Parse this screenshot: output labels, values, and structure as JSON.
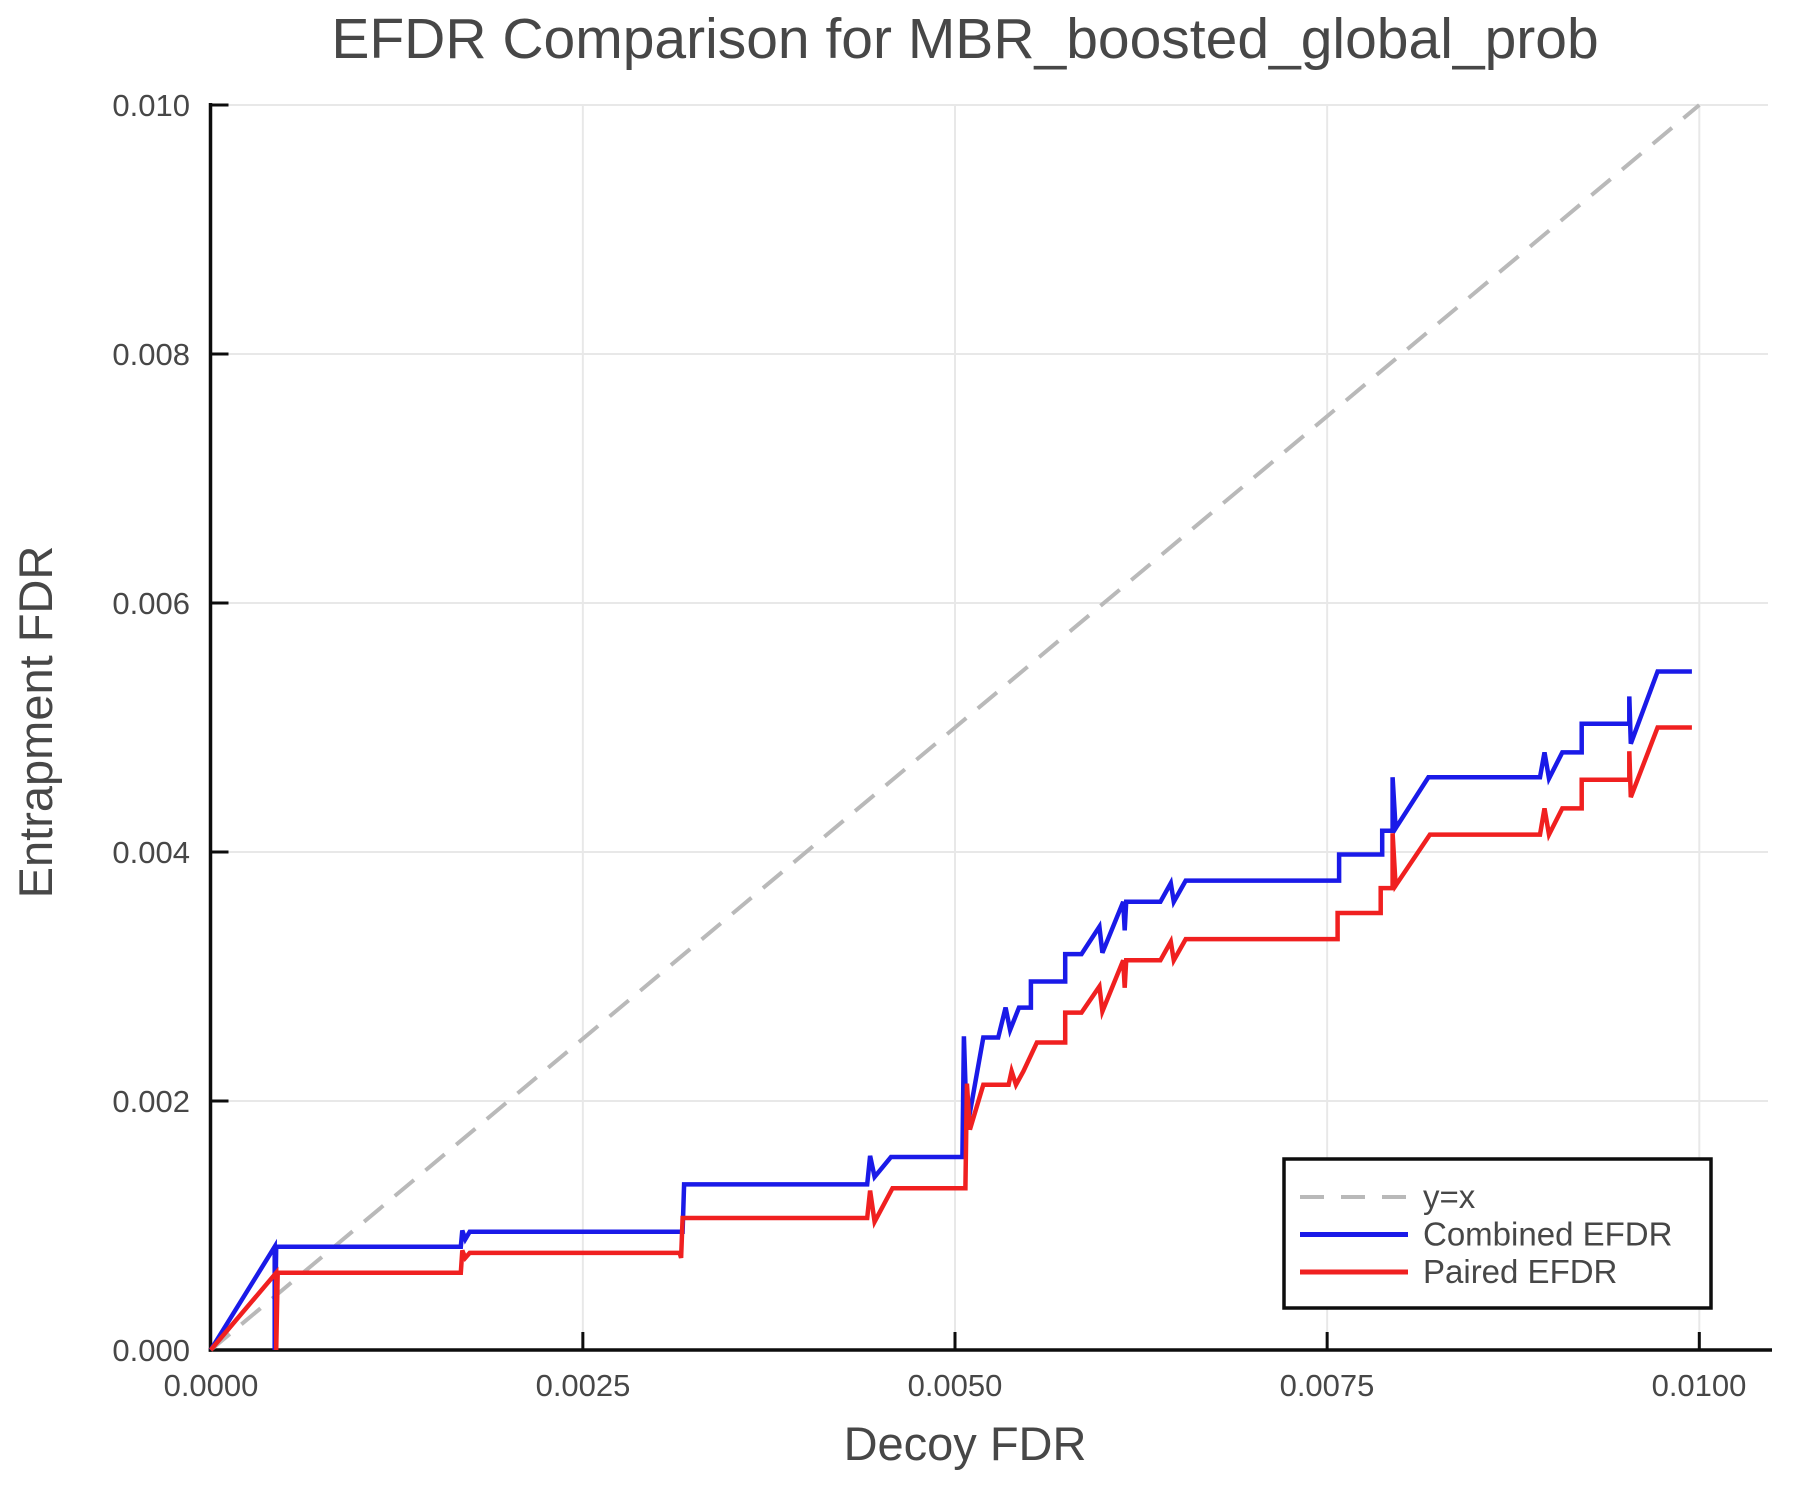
{
  "chart_data": {
    "type": "line",
    "title": "EFDR Comparison for MBR_boosted_global_prob",
    "xlabel": "Decoy FDR",
    "ylabel": "Entrapment FDR",
    "xlim": [
      0,
      0.0105
    ],
    "ylim": [
      0,
      0.0101
    ],
    "grid": true,
    "legend_position": "lower-right",
    "x_ticks": [
      0,
      0.0025,
      0.005,
      0.0075,
      0.01
    ],
    "x_tick_labels": [
      "0.0000",
      "0.0025",
      "0.0050",
      "0.0075",
      "0.0100"
    ],
    "y_ticks": [
      0,
      0.002,
      0.004,
      0.006,
      0.008,
      0.01
    ],
    "y_tick_labels": [
      "0.000",
      "0.002",
      "0.004",
      "0.006",
      "0.008",
      "0.010"
    ],
    "series": [
      {
        "name": "y=x",
        "color": "#b9b9b9",
        "style": "dashed",
        "points": [
          [
            0,
            0
          ],
          [
            0.01,
            0.01
          ]
        ]
      },
      {
        "name": "Combined EFDR",
        "color": "#1a1ae8",
        "style": "solid",
        "points": [
          [
            0,
            0
          ],
          [
            0.00043,
            0.00083
          ],
          [
            0.00043,
            0
          ],
          [
            0.00044,
            0.00083
          ],
          [
            0.00168,
            0.00083
          ],
          [
            0.00169,
            0.00096
          ],
          [
            0.00171,
            0.00089
          ],
          [
            0.00174,
            0.00095
          ],
          [
            0.00317,
            0.00095
          ],
          [
            0.00318,
            0.00133
          ],
          [
            0.00441,
            0.00133
          ],
          [
            0.00443,
            0.00156
          ],
          [
            0.00446,
            0.00139
          ],
          [
            0.00457,
            0.00155
          ],
          [
            0.00505,
            0.00155
          ],
          [
            0.00506,
            0.00252
          ],
          [
            0.00508,
            0.00177
          ],
          [
            0.00519,
            0.00251
          ],
          [
            0.00529,
            0.00251
          ],
          [
            0.00534,
            0.00275
          ],
          [
            0.00537,
            0.00257
          ],
          [
            0.00543,
            0.00275
          ],
          [
            0.00551,
            0.00275
          ],
          [
            0.00551,
            0.00296
          ],
          [
            0.00574,
            0.00296
          ],
          [
            0.00574,
            0.00318
          ],
          [
            0.00585,
            0.00318
          ],
          [
            0.00597,
            0.0034
          ],
          [
            0.00599,
            0.00319
          ],
          [
            0.00613,
            0.0036
          ],
          [
            0.00614,
            0.00337
          ],
          [
            0.00615,
            0.0036
          ],
          [
            0.00638,
            0.0036
          ],
          [
            0.00645,
            0.00375
          ],
          [
            0.00647,
            0.0036
          ],
          [
            0.00655,
            0.00377
          ],
          [
            0.00758,
            0.00377
          ],
          [
            0.00758,
            0.00398
          ],
          [
            0.00787,
            0.00398
          ],
          [
            0.00787,
            0.00417
          ],
          [
            0.00794,
            0.00417
          ],
          [
            0.00794,
            0.0046
          ],
          [
            0.00796,
            0.00419
          ],
          [
            0.00818,
            0.0046
          ],
          [
            0.00893,
            0.0046
          ],
          [
            0.00896,
            0.0048
          ],
          [
            0.00899,
            0.00459
          ],
          [
            0.00908,
            0.0048
          ],
          [
            0.00921,
            0.0048
          ],
          [
            0.00921,
            0.00503
          ],
          [
            0.00953,
            0.00503
          ],
          [
            0.00953,
            0.00525
          ],
          [
            0.00954,
            0.00487
          ],
          [
            0.00972,
            0.00545
          ],
          [
            0.00995,
            0.00545
          ]
        ]
      },
      {
        "name": "Paired EFDR",
        "color": "#f02020",
        "style": "solid",
        "points": [
          [
            0,
            0
          ],
          [
            0.00044,
            0.00062
          ],
          [
            0.00044,
            0
          ],
          [
            0.00045,
            0.00062
          ],
          [
            0.00168,
            0.00062
          ],
          [
            0.00169,
            0.0008
          ],
          [
            0.00171,
            0.00074
          ],
          [
            0.00174,
            0.00078
          ],
          [
            0.00315,
            0.00078
          ],
          [
            0.00316,
            0.00074
          ],
          [
            0.00317,
            0.00106
          ],
          [
            0.00441,
            0.00106
          ],
          [
            0.00443,
            0.00128
          ],
          [
            0.00446,
            0.00103
          ],
          [
            0.00458,
            0.0013
          ],
          [
            0.00507,
            0.0013
          ],
          [
            0.00508,
            0.00214
          ],
          [
            0.0051,
            0.00177
          ],
          [
            0.00519,
            0.00213
          ],
          [
            0.00536,
            0.00213
          ],
          [
            0.00538,
            0.00224
          ],
          [
            0.00541,
            0.00213
          ],
          [
            0.00546,
            0.00224
          ],
          [
            0.00555,
            0.00247
          ],
          [
            0.00574,
            0.00247
          ],
          [
            0.00574,
            0.00271
          ],
          [
            0.00585,
            0.00271
          ],
          [
            0.00597,
            0.00292
          ],
          [
            0.00599,
            0.00272
          ],
          [
            0.00613,
            0.00313
          ],
          [
            0.00614,
            0.00291
          ],
          [
            0.00615,
            0.00313
          ],
          [
            0.00638,
            0.00313
          ],
          [
            0.00645,
            0.00328
          ],
          [
            0.00647,
            0.00313
          ],
          [
            0.00655,
            0.0033
          ],
          [
            0.00757,
            0.0033
          ],
          [
            0.00757,
            0.00351
          ],
          [
            0.00786,
            0.00351
          ],
          [
            0.00786,
            0.00371
          ],
          [
            0.00794,
            0.00371
          ],
          [
            0.00794,
            0.00415
          ],
          [
            0.00796,
            0.00373
          ],
          [
            0.00819,
            0.00414
          ],
          [
            0.00893,
            0.00414
          ],
          [
            0.00896,
            0.00435
          ],
          [
            0.00899,
            0.00414
          ],
          [
            0.00908,
            0.00435
          ],
          [
            0.00921,
            0.00435
          ],
          [
            0.00921,
            0.00458
          ],
          [
            0.00953,
            0.00458
          ],
          [
            0.00953,
            0.00481
          ],
          [
            0.00954,
            0.00444
          ],
          [
            0.00972,
            0.005
          ],
          [
            0.00995,
            0.005
          ]
        ]
      }
    ],
    "colors": {
      "grid": "#e8e8e8",
      "spine": "#0d0d0d",
      "text": "#474747",
      "legend_border": "#0d0d0d",
      "background": "#ffffff"
    }
  }
}
